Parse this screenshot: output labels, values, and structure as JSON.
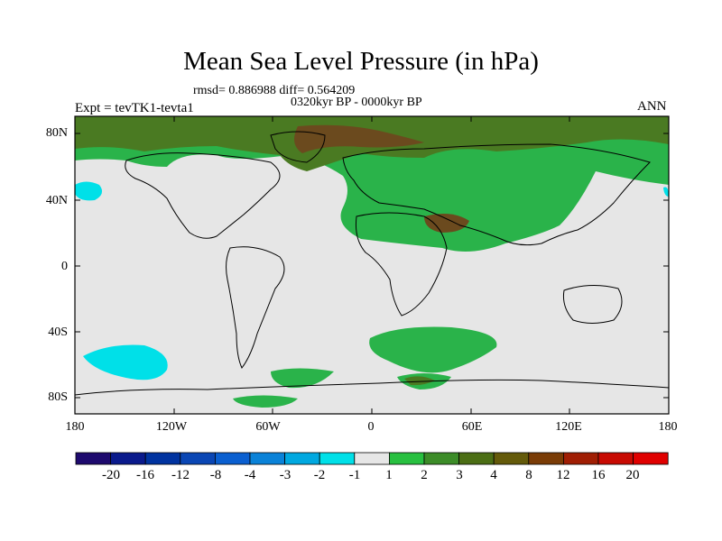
{
  "map": {
    "title": "Mean Sea Level Pressure (in hPa)",
    "stats": "rmsd= 0.886988  diff= 0.564209",
    "period": "0320kyr BP - 0000kyr BP",
    "experiment": "Expt = tevTK1-tevta1",
    "season": "ANN",
    "lat_labels": [
      "80N",
      "40N",
      "0",
      "40S",
      "80S"
    ],
    "lon_labels": [
      "180",
      "120W",
      "60W",
      "0",
      "60E",
      "120E",
      "180"
    ],
    "colors": {
      "neutral": "#e6e6e6",
      "green_light": "#2ab34a",
      "olive": "#4a7a22",
      "brown": "#6b4a1e",
      "cyan": "#00e0e8",
      "blue": "#0a5fd0",
      "land_outline": "#000000"
    }
  },
  "colorbar": {
    "labels": [
      "-20",
      "-16",
      "-12",
      "-8",
      "-4",
      "-3",
      "-2",
      "-1",
      "1",
      "2",
      "3",
      "4",
      "8",
      "12",
      "16",
      "20"
    ],
    "colors": [
      "#1e0a6e",
      "#0a1a8c",
      "#0033a0",
      "#0a46b4",
      "#0a5fd0",
      "#0a82d8",
      "#00a8e0",
      "#00e0e8",
      "#e6e6e6",
      "#28c040",
      "#3c8c28",
      "#4b6e14",
      "#645a0a",
      "#7a3c06",
      "#a01e04",
      "#c80a02",
      "#e00000"
    ]
  }
}
